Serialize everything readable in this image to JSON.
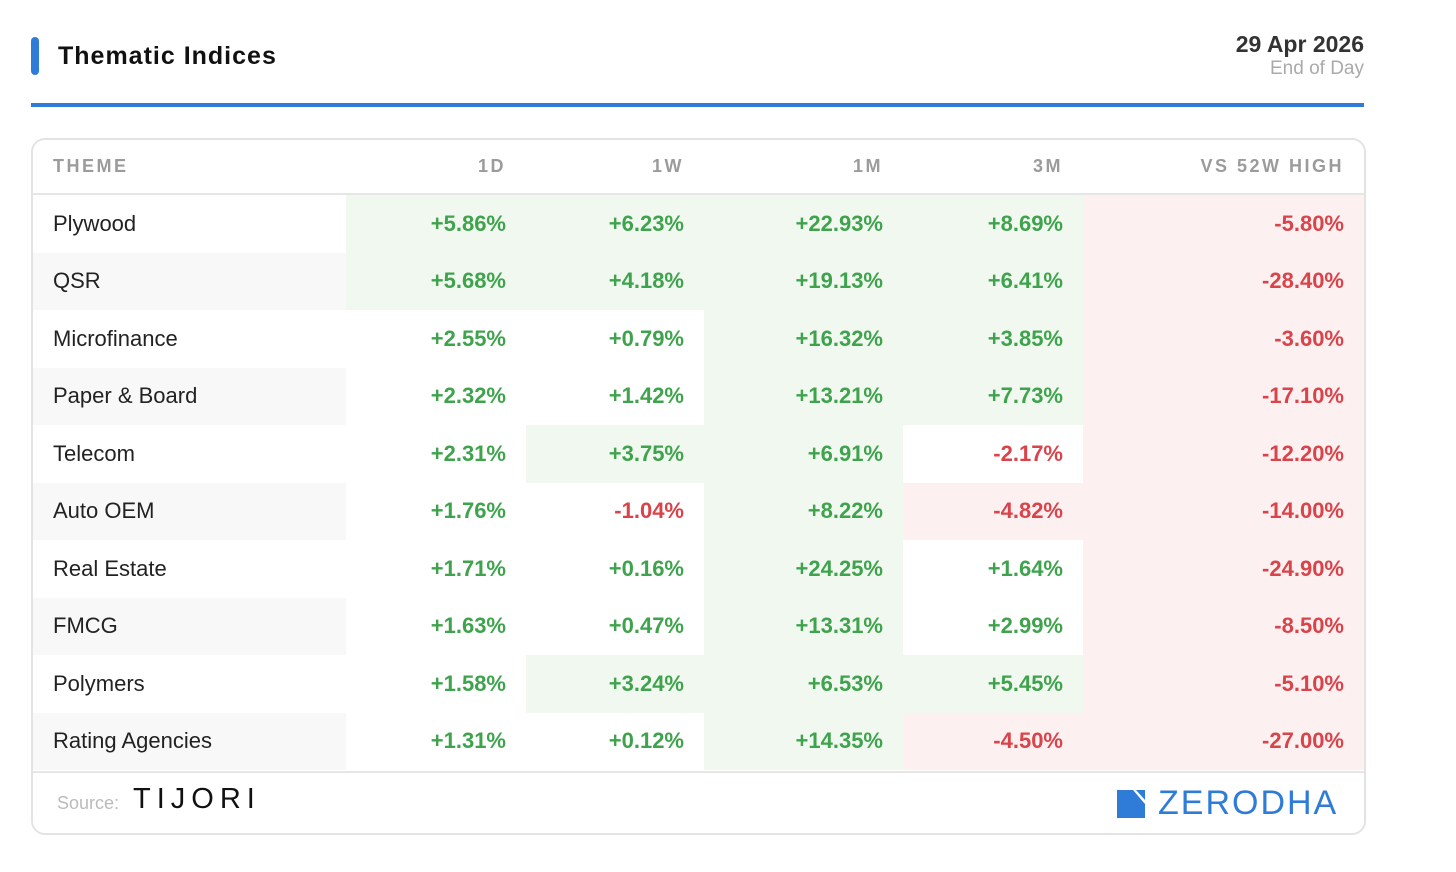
{
  "header": {
    "title": "Thematic Indices",
    "date": "29 Apr 2026",
    "subtitle": "End of Day"
  },
  "colors": {
    "accent": "#2f7bd8",
    "positive": "#3fa34d",
    "negative": "#d9434a",
    "positive_bg": "#f1f8f0",
    "negative_bg": "#fdf0f0"
  },
  "chart_data": {
    "type": "table",
    "columns": [
      "THEME",
      "1D",
      "1W",
      "1M",
      "3M",
      "VS 52W HIGH"
    ],
    "rows": [
      {
        "theme": "Plywood",
        "values": [
          "+5.86%",
          "+6.23%",
          "+22.93%",
          "+8.69%",
          "-5.80%"
        ],
        "highlight": [
          "pos",
          "pos",
          "pos",
          "pos",
          "neg"
        ]
      },
      {
        "theme": "QSR",
        "values": [
          "+5.68%",
          "+4.18%",
          "+19.13%",
          "+6.41%",
          "-28.40%"
        ],
        "highlight": [
          "pos",
          "pos",
          "pos",
          "pos",
          "neg"
        ]
      },
      {
        "theme": "Microfinance",
        "values": [
          "+2.55%",
          "+0.79%",
          "+16.32%",
          "+3.85%",
          "-3.60%"
        ],
        "highlight": [
          "",
          "",
          "pos",
          "pos",
          "neg"
        ]
      },
      {
        "theme": "Paper & Board",
        "values": [
          "+2.32%",
          "+1.42%",
          "+13.21%",
          "+7.73%",
          "-17.10%"
        ],
        "highlight": [
          "",
          "",
          "pos",
          "pos",
          "neg"
        ]
      },
      {
        "theme": "Telecom",
        "values": [
          "+2.31%",
          "+3.75%",
          "+6.91%",
          "-2.17%",
          "-12.20%"
        ],
        "highlight": [
          "",
          "pos",
          "pos",
          "",
          "neg"
        ]
      },
      {
        "theme": "Auto OEM",
        "values": [
          "+1.76%",
          "-1.04%",
          "+8.22%",
          "-4.82%",
          "-14.00%"
        ],
        "highlight": [
          "",
          "",
          "pos",
          "neg",
          "neg"
        ]
      },
      {
        "theme": "Real Estate",
        "values": [
          "+1.71%",
          "+0.16%",
          "+24.25%",
          "+1.64%",
          "-24.90%"
        ],
        "highlight": [
          "",
          "",
          "pos",
          "",
          "neg"
        ]
      },
      {
        "theme": "FMCG",
        "values": [
          "+1.63%",
          "+0.47%",
          "+13.31%",
          "+2.99%",
          "-8.50%"
        ],
        "highlight": [
          "",
          "",
          "pos",
          "",
          "neg"
        ]
      },
      {
        "theme": "Polymers",
        "values": [
          "+1.58%",
          "+3.24%",
          "+6.53%",
          "+5.45%",
          "-5.10%"
        ],
        "highlight": [
          "",
          "pos",
          "pos",
          "pos",
          "neg"
        ]
      },
      {
        "theme": "Rating Agencies",
        "values": [
          "+1.31%",
          "+0.12%",
          "+14.35%",
          "-4.50%",
          "-27.00%"
        ],
        "highlight": [
          "",
          "",
          "pos",
          "neg",
          "neg"
        ]
      }
    ]
  },
  "footer": {
    "source_label": "Source:",
    "source_name": "TIJORI",
    "brand": "ZERODHA"
  }
}
